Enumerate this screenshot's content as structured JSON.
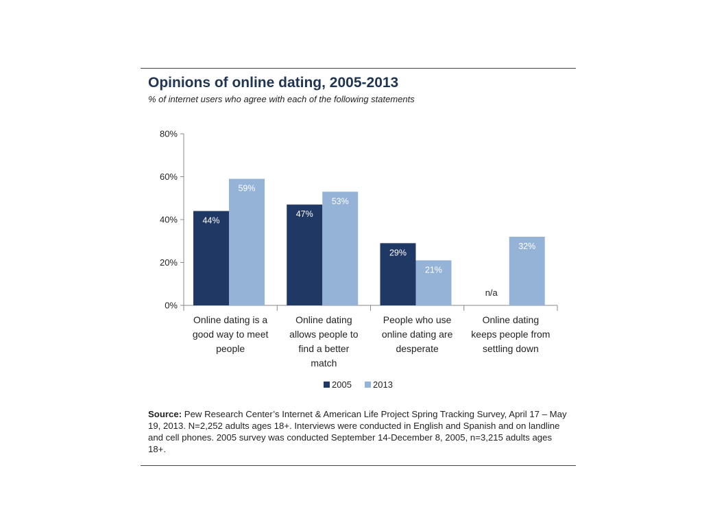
{
  "title": "Opinions of online dating, 2005-2013",
  "subtitle": "% of internet users who agree with each of the following statements",
  "source_label": "Source:",
  "source_text": " Pew Research Center’s Internet & American Life Project Spring Tracking Survey, April 17 – May 19, 2013. N=2,252 adults ages 18+. Interviews were conducted in English and Spanish and on landline and cell phones.  2005 survey was conducted September 14-December 8, 2005, n=3,215 adults ages 18+.",
  "colors": {
    "2005": "#1f3864",
    "2013": "#95b3d7",
    "axis": "#888888",
    "text": "#222222"
  },
  "chart_data": {
    "type": "bar",
    "title": "Opinions of online dating, 2005-2013",
    "subtitle": "% of internet users who agree with each of the following statements",
    "xlabel": "",
    "ylabel": "",
    "ylim": [
      0,
      80
    ],
    "yticks": [
      0,
      20,
      40,
      60,
      80
    ],
    "ytick_labels": [
      "0%",
      "20%",
      "40%",
      "60%",
      "80%"
    ],
    "categories": [
      [
        "Online dating is a",
        "good way to meet",
        "people"
      ],
      [
        "Online dating",
        "allows people to",
        "find a better",
        "match"
      ],
      [
        "People who use",
        "online dating are",
        "desperate"
      ],
      [
        "Online dating",
        "keeps people from",
        "settling down"
      ]
    ],
    "series": [
      {
        "name": "2005",
        "values": [
          44,
          47,
          29,
          null
        ],
        "labels": [
          "44%",
          "47%",
          "29%",
          "n/a"
        ]
      },
      {
        "name": "2013",
        "values": [
          59,
          53,
          21,
          32
        ],
        "labels": [
          "59%",
          "53%",
          "21%",
          "32%"
        ]
      }
    ],
    "legend": "bottom"
  }
}
